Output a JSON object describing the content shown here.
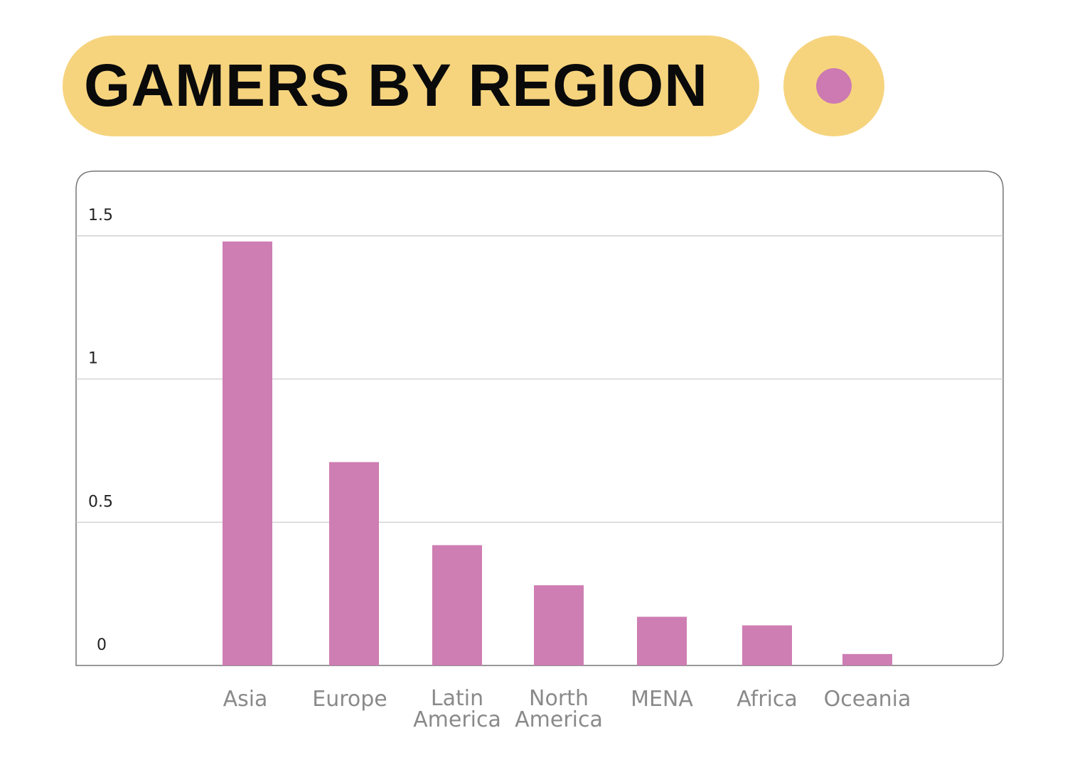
{
  "chart_data": {
    "type": "bar",
    "title": "GAMERS BY REGION",
    "categories": [
      [
        "Asia"
      ],
      [
        "Europe"
      ],
      [
        "Latin",
        "America"
      ],
      [
        "North",
        "America"
      ],
      [
        "MENA"
      ],
      [
        "Africa"
      ],
      [
        "Oceania"
      ]
    ],
    "values": [
      1.48,
      0.71,
      0.42,
      0.28,
      0.17,
      0.14,
      0.04
    ],
    "yticks": [
      "0",
      "0.5",
      "1",
      "1.5"
    ],
    "ylim": [
      0,
      1.5
    ],
    "grid": true,
    "bar_color": "#cc7ab1",
    "accent_color": "#f6d47e"
  }
}
